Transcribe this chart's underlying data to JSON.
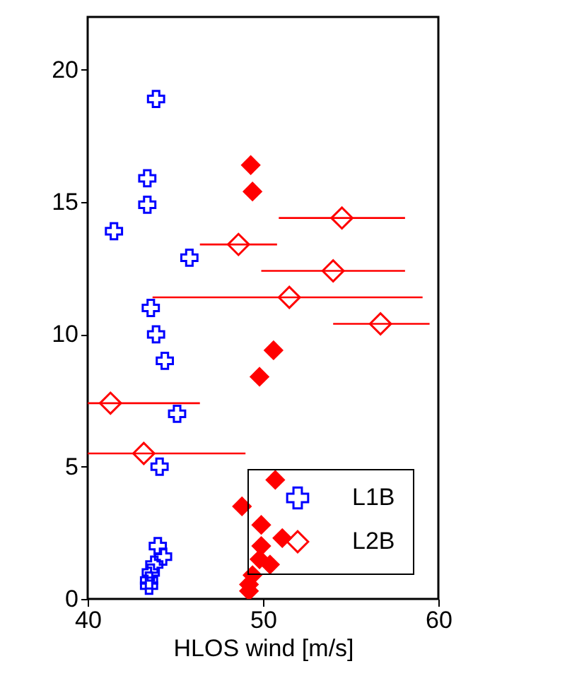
{
  "chart_data": {
    "type": "scatter",
    "xlabel": "HLOS wind [m/s]",
    "xlim": [
      40,
      60
    ],
    "xticks": [
      40,
      50,
      60
    ],
    "ylim": [
      0,
      22
    ],
    "yticks": [
      0,
      5,
      10,
      15,
      20
    ],
    "grid": false,
    "legend": "bottom right",
    "series": [
      {
        "name": "L1B",
        "color": "#0000ff",
        "marker": "cross",
        "x": [
          43.9,
          43.4,
          43.4,
          41.5,
          45.8,
          43.6,
          43.9,
          44.4,
          45.1,
          44.1,
          44.0,
          44.3,
          43.8,
          43.6,
          43.5,
          43.5
        ],
        "values": [
          18.9,
          15.9,
          14.9,
          13.9,
          12.9,
          11.0,
          10.0,
          9.0,
          7.0,
          5.0,
          2.0,
          1.6,
          1.3,
          1.0,
          0.7,
          0.5
        ]
      },
      {
        "name": "L2B",
        "color": "#ff0000",
        "marker": "diamond",
        "x": [
          54.5,
          48.6,
          54.0,
          51.5,
          56.7,
          41.3,
          43.2
        ],
        "values": [
          14.4,
          13.4,
          12.4,
          11.4,
          10.4,
          7.4,
          5.5
        ],
        "xerrors": [
          [
            50.9,
            58.1
          ],
          [
            46.4,
            50.8
          ],
          [
            49.9,
            58.1
          ],
          [
            43.7,
            59.1
          ],
          [
            54.0,
            59.5
          ],
          [
            40.0,
            46.4
          ],
          [
            40.0,
            49.0
          ]
        ]
      },
      {
        "color": "#ff0000",
        "marker": "diamond",
        "x": [
          49.3,
          49.4,
          50.6,
          49.8,
          50.7,
          48.8,
          49.9,
          51.1,
          49.9,
          49.8,
          50.4,
          49.4,
          49.2,
          49.2
        ],
        "values": [
          16.4,
          15.4,
          9.4,
          8.4,
          4.5,
          3.5,
          2.8,
          2.3,
          2.0,
          1.5,
          1.3,
          0.9,
          0.55,
          0.3
        ]
      }
    ]
  }
}
